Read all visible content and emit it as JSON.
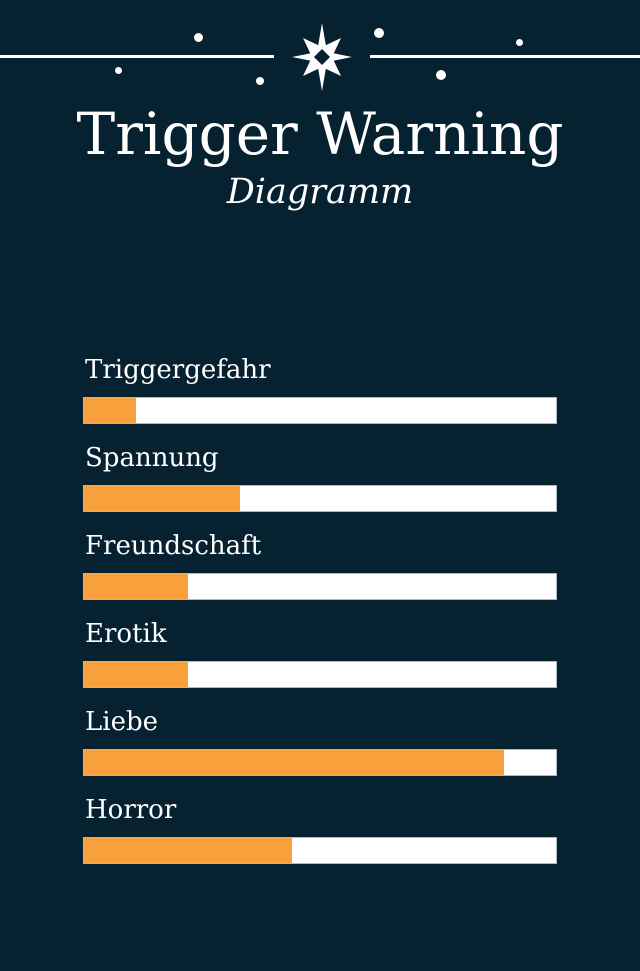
{
  "header": {
    "title": "Trigger Warning",
    "subtitle": "Diagramm"
  },
  "colors": {
    "background": "#062130",
    "accent": "#F8A13C",
    "bar_track": "#FFFFFF",
    "track_border": "#A9BAC4",
    "text": "#FFFFFF"
  },
  "decoration": {
    "divider": "horizontal-line-with-star",
    "star_icon": "eight-point-sparkle-star",
    "dot_icon": "sparkle-dot"
  },
  "chart_data": {
    "type": "bar",
    "orientation": "horizontal",
    "title": "Trigger Warning",
    "subtitle": "Diagramm",
    "categories": [
      "Triggergefahr",
      "Spannung",
      "Freundschaft",
      "Erotik",
      "Liebe",
      "Horror"
    ],
    "values": [
      11,
      33,
      22,
      22,
      89,
      44
    ],
    "unit": "percent",
    "xlim": [
      0,
      100
    ],
    "grid": false,
    "legend": false,
    "value_labels_shown": false,
    "bar_color": "#F8A13C",
    "track_color": "#FFFFFF"
  }
}
